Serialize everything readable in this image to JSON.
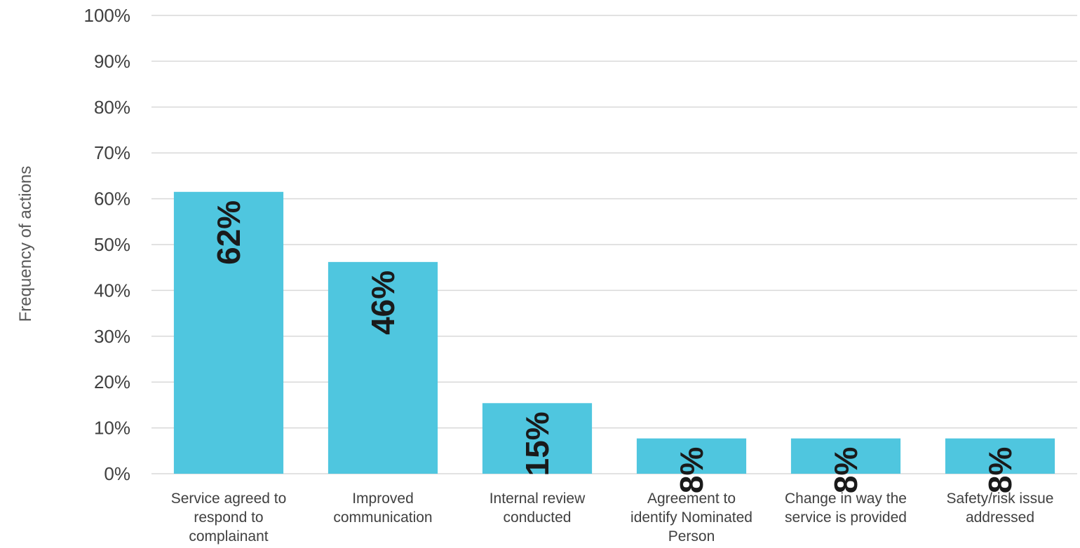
{
  "chart_data": {
    "type": "bar",
    "title": "",
    "xlabel": "",
    "ylabel": "Frequency of actions",
    "ylim": [
      0,
      100
    ],
    "yticks": [
      "0%",
      "10%",
      "20%",
      "30%",
      "40%",
      "50%",
      "60%",
      "70%",
      "80%",
      "90%",
      "100%"
    ],
    "grid": true,
    "legend": "none",
    "bar_color": "#4fc6df",
    "categories": [
      [
        "Service agreed to",
        "respond to",
        "complainant"
      ],
      [
        "Improved",
        "communication"
      ],
      [
        "Internal review",
        "conducted"
      ],
      [
        "Agreement to",
        "identify Nominated",
        "Person"
      ],
      [
        "Change in way the",
        "service is provided"
      ],
      [
        "Safety/risk issue",
        "addressed"
      ]
    ],
    "values": [
      61.5,
      46.2,
      15.4,
      7.7,
      7.7,
      7.7
    ],
    "data_labels": [
      "62%",
      "46%",
      "15%",
      "8%",
      "8%",
      "8%"
    ]
  }
}
